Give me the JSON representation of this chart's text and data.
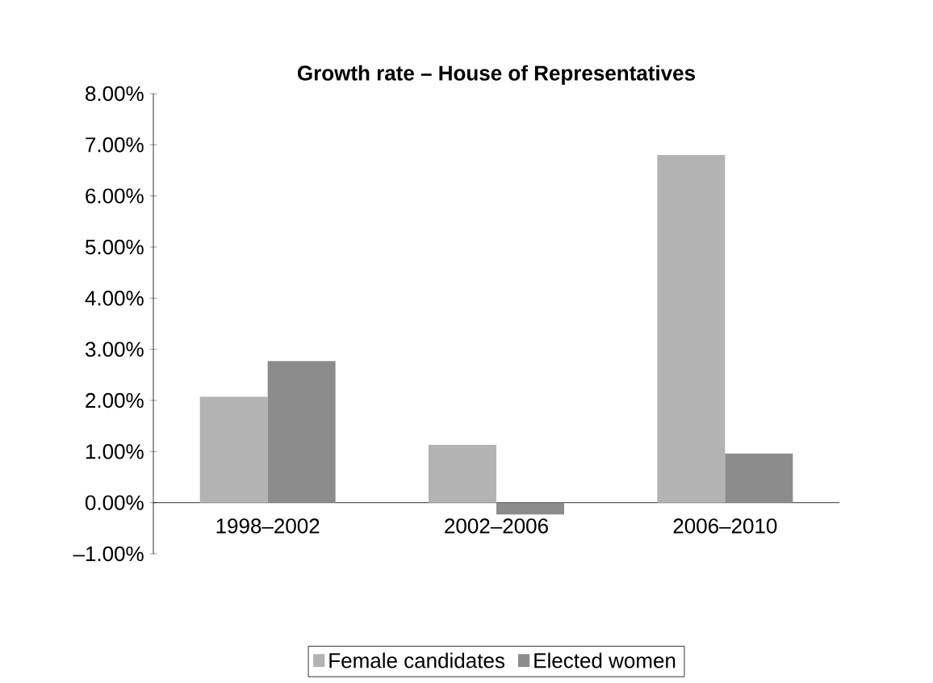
{
  "chart_data": {
    "type": "bar",
    "title": "Growth rate – House of Representatives",
    "categories": [
      "1998–2002",
      "2002–2006",
      "2006–2010"
    ],
    "series": [
      {
        "name": "Female candidates",
        "color": "#b3b3b3",
        "values": [
          2.07,
          1.13,
          6.8
        ]
      },
      {
        "name": "Elected women",
        "color": "#8c8c8c",
        "values": [
          2.77,
          -0.23,
          0.96
        ]
      }
    ],
    "ylim": [
      -1,
      8
    ],
    "yticks": [
      {
        "value": -1,
        "label": "–1.00%"
      },
      {
        "value": 0,
        "label": "0.00%"
      },
      {
        "value": 1,
        "label": "1.00%"
      },
      {
        "value": 2,
        "label": "2.00%"
      },
      {
        "value": 3,
        "label": "3.00%"
      },
      {
        "value": 4,
        "label": "4.00%"
      },
      {
        "value": 5,
        "label": "5.00%"
      },
      {
        "value": 6,
        "label": "6.00%"
      },
      {
        "value": 7,
        "label": "7.00%"
      },
      {
        "value": 8,
        "label": "8.00%"
      }
    ],
    "grid": false,
    "legend": "bottom"
  }
}
